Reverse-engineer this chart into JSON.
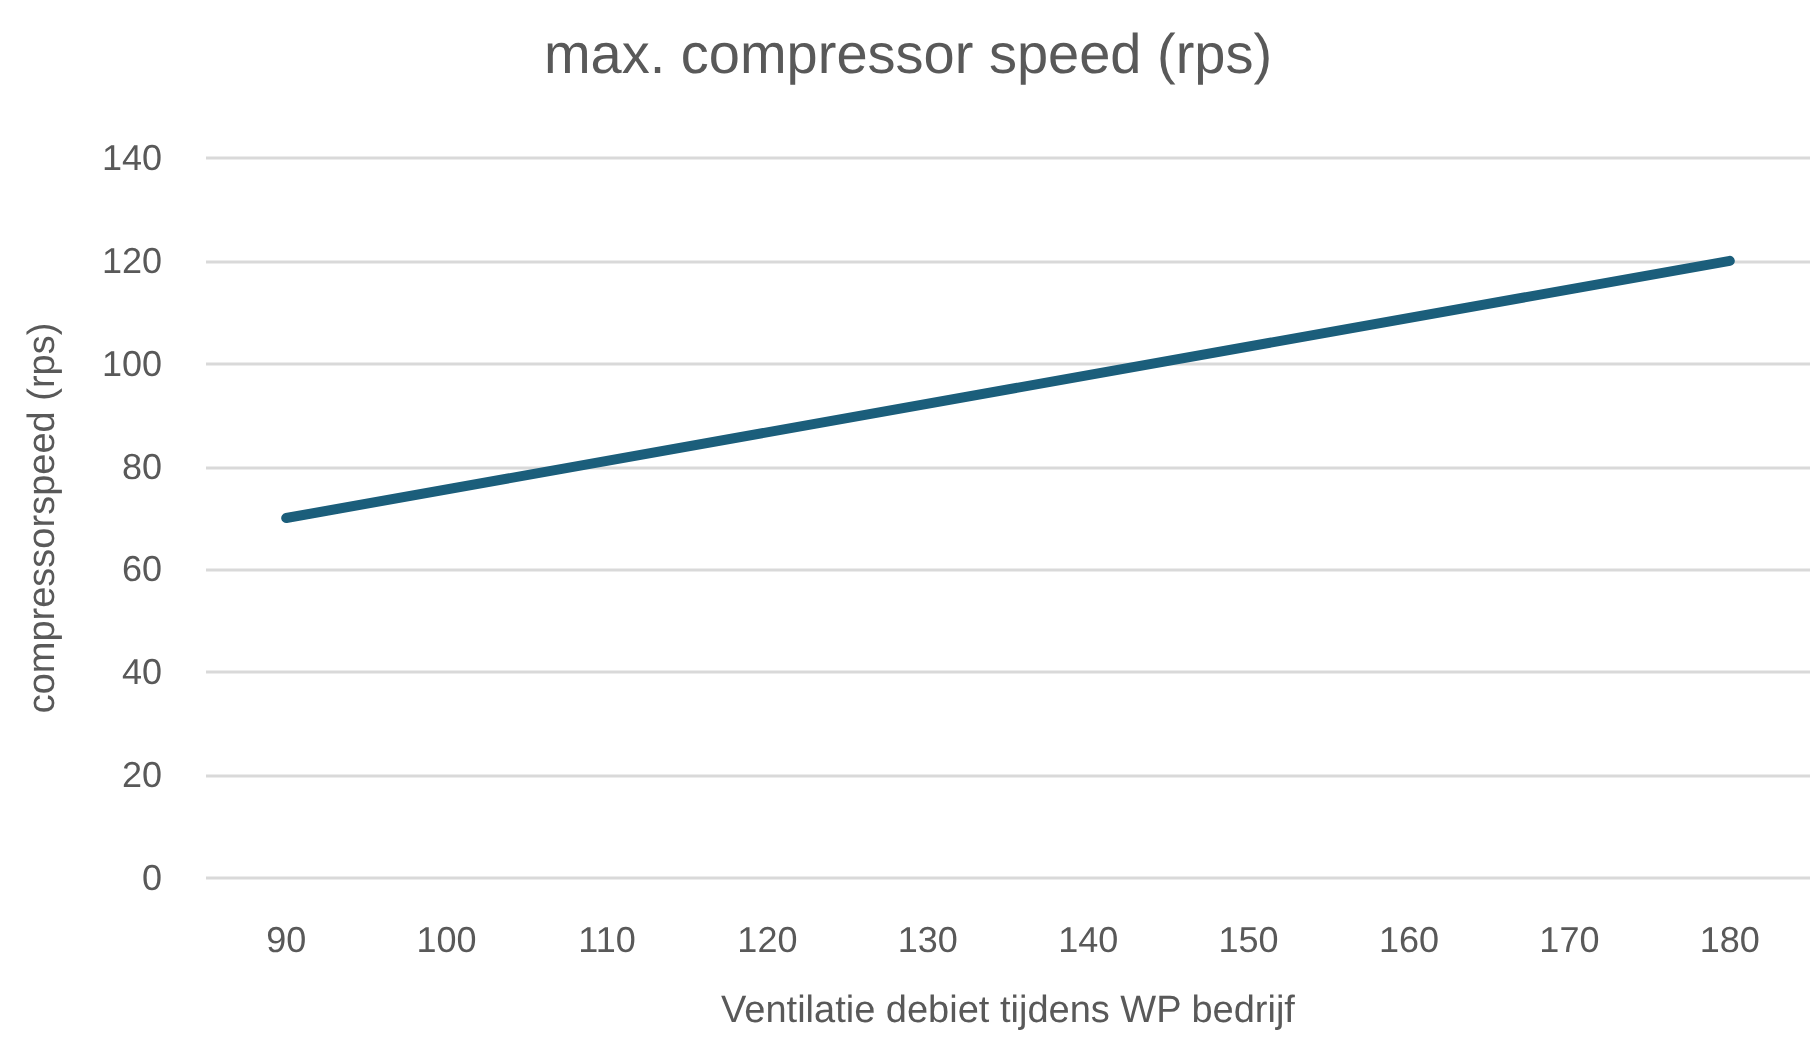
{
  "chart_data": {
    "type": "line",
    "title": "max. compressor speed (rps)",
    "xlabel": "Ventilatie debiet tijdens WP bedrijf",
    "ylabel": "compressorspeed (rps)",
    "x": [
      90,
      180
    ],
    "series": [
      {
        "color": "#1b5e7b",
        "values": [
          70,
          120
        ]
      }
    ],
    "xlim": [
      85,
      185
    ],
    "xticks": [
      90,
      100,
      110,
      120,
      130,
      140,
      150,
      160,
      170,
      180
    ],
    "ylim": [
      0,
      140
    ],
    "yticks": [
      0,
      20,
      40,
      60,
      80,
      100,
      120,
      140
    ],
    "grid": "y",
    "marker": "none",
    "line_style": "solid"
  }
}
